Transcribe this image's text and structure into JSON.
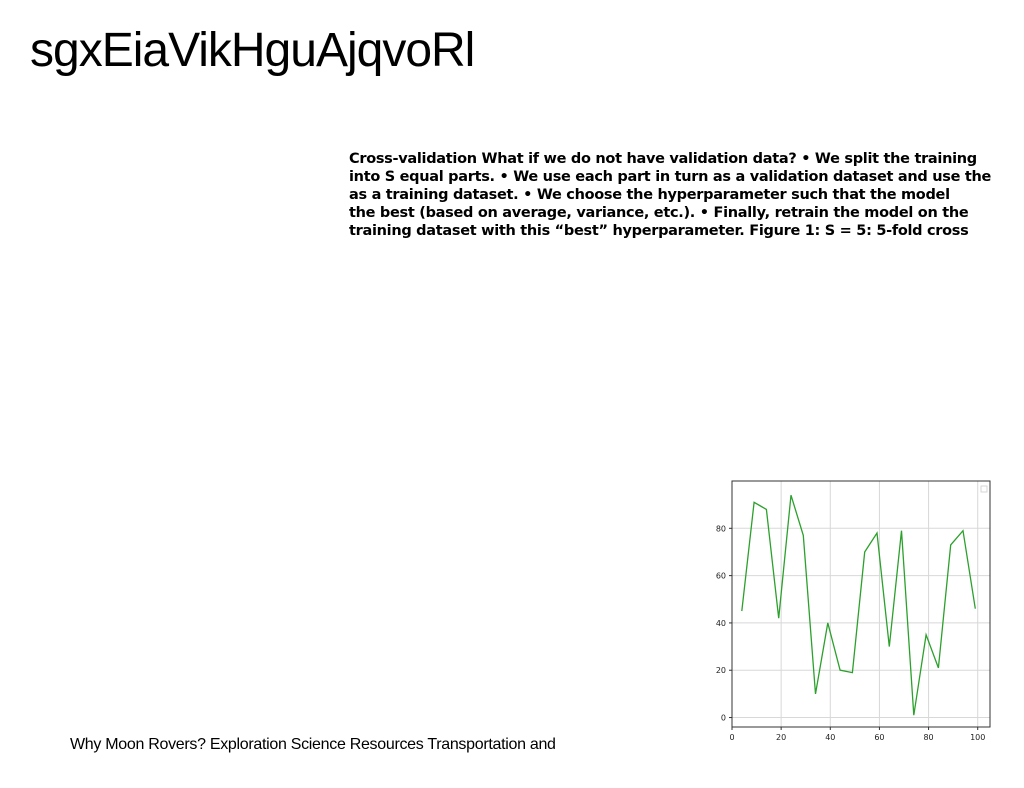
{
  "page": {
    "title": "sgxEiaVikHguAjqvoRl",
    "body_lines": [
      "Cross-validation What if we do not have validation data? • We split the training",
      "into S equal parts. • We use each part in turn as a validation dataset and use the",
      "as a training dataset. • We choose the hyperparameter such that the model",
      "the best (based on average, variance, etc.). • Finally, retrain the model on the",
      "training dataset with this “best” hyperparameter. Figure 1: S = 5: 5-fold cross"
    ],
    "footer": "Why Moon Rovers? Exploration Science Resources Transportation and"
  },
  "chart_data": {
    "type": "line",
    "title": "",
    "xlabel": "",
    "ylabel": "",
    "xlim": [
      0,
      105
    ],
    "ylim": [
      -4,
      100
    ],
    "xticks": [
      0,
      20,
      40,
      60,
      80,
      100
    ],
    "yticks": [
      0,
      20,
      40,
      60,
      80
    ],
    "grid": true,
    "legend": "top-right (empty box)",
    "series": [
      {
        "color": "#2ca02c",
        "x": [
          4,
          9,
          14,
          19,
          24,
          29,
          34,
          39,
          44,
          49,
          54,
          59,
          64,
          69,
          74,
          79,
          84,
          89,
          94,
          99
        ],
        "y": [
          45,
          91,
          88,
          42,
          94,
          77,
          10,
          40,
          20,
          19,
          70,
          78,
          30,
          79,
          1,
          35,
          21,
          73,
          79,
          46
        ]
      }
    ]
  }
}
